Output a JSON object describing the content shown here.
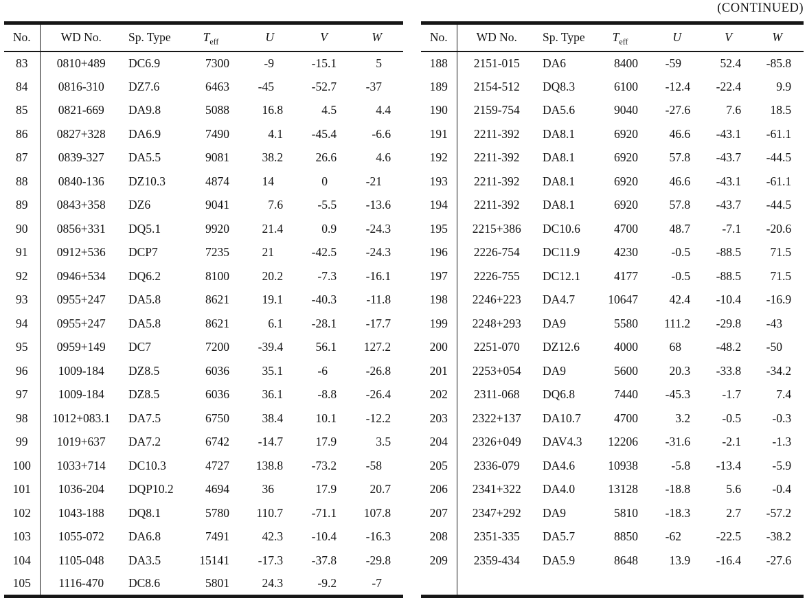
{
  "page": {
    "continued_label": "(CONTINUED)"
  },
  "table_headers": {
    "no": "No.",
    "wd": "WD No.",
    "sp": "Sp. Type",
    "teff_symbol": "T",
    "teff_subscript": "eff",
    "u": "U",
    "v": "V",
    "w": "W"
  },
  "chart_data": {
    "type": "table",
    "title": "(CONTINUED)",
    "columns": [
      "No.",
      "WD No.",
      "Sp. Type",
      "Teff",
      "U",
      "V",
      "W"
    ]
  },
  "tables": [
    {
      "id": "left",
      "rows": [
        [
          "83",
          "0810+489",
          "DC6.9",
          "7300",
          "-9",
          "-15.1",
          "5"
        ],
        [
          "84",
          "0816-310",
          "DZ7.6",
          "6463",
          "-45",
          "-52.7",
          "-37"
        ],
        [
          "85",
          "0821-669",
          "DA9.8",
          "5088",
          "16.8",
          "4.5",
          "4.4"
        ],
        [
          "86",
          "0827+328",
          "DA6.9",
          "7490",
          "4.1",
          "-45.4",
          "-6.6"
        ],
        [
          "87",
          "0839-327",
          "DA5.5",
          "9081",
          "38.2",
          "26.6",
          "4.6"
        ],
        [
          "88",
          "0840-136",
          "DZ10.3",
          "4874",
          "14",
          "0",
          "-21"
        ],
        [
          "89",
          "0843+358",
          "DZ6",
          "9041",
          "7.6",
          "-5.5",
          "-13.6"
        ],
        [
          "90",
          "0856+331",
          "DQ5.1",
          "9920",
          "21.4",
          "0.9",
          "-24.3"
        ],
        [
          "91",
          "0912+536",
          "DCP7",
          "7235",
          "21",
          "-42.5",
          "-24.3"
        ],
        [
          "92",
          "0946+534",
          "DQ6.2",
          "8100",
          "20.2",
          "-7.3",
          "-16.1"
        ],
        [
          "93",
          "0955+247",
          "DA5.8",
          "8621",
          "19.1",
          "-40.3",
          "-11.8"
        ],
        [
          "94",
          "0955+247",
          "DA5.8",
          "8621",
          "6.1",
          "-28.1",
          "-17.7"
        ],
        [
          "95",
          "0959+149",
          "DC7",
          "7200",
          "-39.4",
          "56.1",
          "127.2"
        ],
        [
          "96",
          "1009-184",
          "DZ8.5",
          "6036",
          "35.1",
          "-6",
          "-26.8"
        ],
        [
          "97",
          "1009-184",
          "DZ8.5",
          "6036",
          "36.1",
          "-8.8",
          "-26.4"
        ],
        [
          "98",
          "1012+083.1",
          "DA7.5",
          "6750",
          "38.4",
          "10.1",
          "-12.2"
        ],
        [
          "99",
          "1019+637",
          "DA7.2",
          "6742",
          "-14.7",
          "17.9",
          "3.5"
        ],
        [
          "100",
          "1033+714",
          "DC10.3",
          "4727",
          "138.8",
          "-73.2",
          "-58"
        ],
        [
          "101",
          "1036-204",
          "DQP10.2",
          "4694",
          "36",
          "17.9",
          "20.7"
        ],
        [
          "102",
          "1043-188",
          "DQ8.1",
          "5780",
          "110.7",
          "-71.1",
          "107.8"
        ],
        [
          "103",
          "1055-072",
          "DA6.8",
          "7491",
          "42.3",
          "-10.4",
          "-16.3"
        ],
        [
          "104",
          "1105-048",
          "DA3.5",
          "15141",
          "-17.3",
          "-37.8",
          "-29.8"
        ],
        [
          "105",
          "1116-470",
          "DC8.6",
          "5801",
          "24.3",
          "-9.2",
          "-7"
        ]
      ]
    },
    {
      "id": "right",
      "rows": [
        [
          "188",
          "2151-015",
          "DA6",
          "8400",
          "-59",
          "52.4",
          "-85.8"
        ],
        [
          "189",
          "2154-512",
          "DQ8.3",
          "6100",
          "-12.4",
          "-22.4",
          "9.9"
        ],
        [
          "190",
          "2159-754",
          "DA5.6",
          "9040",
          "-27.6",
          "7.6",
          "18.5"
        ],
        [
          "191",
          "2211-392",
          "DA8.1",
          "6920",
          "46.6",
          "-43.1",
          "-61.1"
        ],
        [
          "192",
          "2211-392",
          "DA8.1",
          "6920",
          "57.8",
          "-43.7",
          "-44.5"
        ],
        [
          "193",
          "2211-392",
          "DA8.1",
          "6920",
          "46.6",
          "-43.1",
          "-61.1"
        ],
        [
          "194",
          "2211-392",
          "DA8.1",
          "6920",
          "57.8",
          "-43.7",
          "-44.5"
        ],
        [
          "195",
          "2215+386",
          "DC10.6",
          "4700",
          "48.7",
          "-7.1",
          "-20.6"
        ],
        [
          "196",
          "2226-754",
          "DC11.9",
          "4230",
          "-0.5",
          "-88.5",
          "71.5"
        ],
        [
          "197",
          "2226-755",
          "DC12.1",
          "4177",
          "-0.5",
          "-88.5",
          "71.5"
        ],
        [
          "198",
          "2246+223",
          "DA4.7",
          "10647",
          "42.4",
          "-10.4",
          "-16.9"
        ],
        [
          "199",
          "2248+293",
          "DA9",
          "5580",
          "111.2",
          "-29.8",
          "-43"
        ],
        [
          "200",
          "2251-070",
          "DZ12.6",
          "4000",
          "68",
          "-48.2",
          "-50"
        ],
        [
          "201",
          "2253+054",
          "DA9",
          "5600",
          "20.3",
          "-33.8",
          "-34.2"
        ],
        [
          "202",
          "2311-068",
          "DQ6.8",
          "7440",
          "-45.3",
          "-1.7",
          "7.4"
        ],
        [
          "203",
          "2322+137",
          "DA10.7",
          "4700",
          "3.2",
          "-0.5",
          "-0.3"
        ],
        [
          "204",
          "2326+049",
          "DAV4.3",
          "12206",
          "-31.6",
          "-2.1",
          "-1.3"
        ],
        [
          "205",
          "2336-079",
          "DA4.6",
          "10938",
          "-5.8",
          "-13.4",
          "-5.9"
        ],
        [
          "206",
          "2341+322",
          "DA4.0",
          "13128",
          "-18.8",
          "5.6",
          "-0.4"
        ],
        [
          "207",
          "2347+292",
          "DA9",
          "5810",
          "-18.3",
          "2.7",
          "-57.2"
        ],
        [
          "208",
          "2351-335",
          "DA5.7",
          "8850",
          "-62",
          "-22.5",
          "-38.2"
        ],
        [
          "209",
          "2359-434",
          "DA5.9",
          "8648",
          "13.9",
          "-16.4",
          "-27.6"
        ]
      ]
    }
  ]
}
